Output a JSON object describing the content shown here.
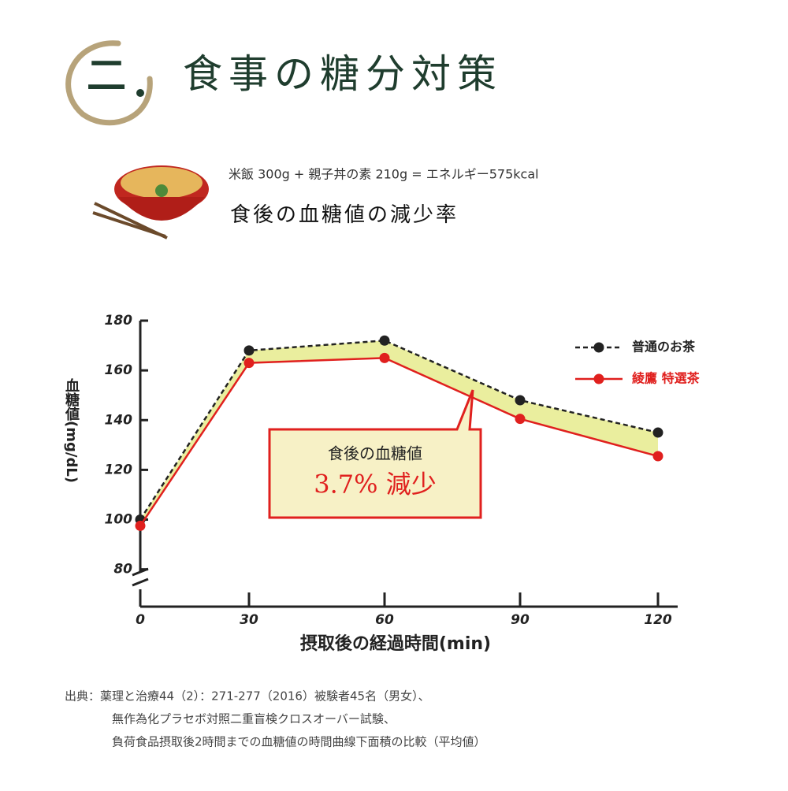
{
  "header": {
    "logo": "二",
    "title": "食事の糖分対策"
  },
  "meal": {
    "note": "米飯 300g + 親子丼の素 210g = エネルギー575kcal",
    "heading": "食後の血糖値の減少率"
  },
  "chart_data": {
    "type": "line",
    "y_label": "血糖値(mg/dL)",
    "x_label": "摂取後の経過時間(min)",
    "categories": [
      "0",
      "30",
      "60",
      "90",
      "120"
    ],
    "series": [
      {
        "name": "普通のお茶",
        "color": "#222222",
        "values": [
          100,
          168,
          172,
          148,
          135
        ]
      },
      {
        "name": "綾鷹 特選茶",
        "color": "#e0201e",
        "values": [
          97.5,
          163,
          165,
          140.5,
          125.5
        ]
      }
    ],
    "ylim": [
      65,
      180
    ],
    "yticks": [
      80,
      100,
      120,
      140,
      160,
      180
    ],
    "fill_between_color": "#eaee9e",
    "annotation": {
      "line1": "食後の血糖値",
      "line2": "3.7% 減少"
    }
  },
  "source": [
    "出典：薬理と治療44（2）：271-277（2016）被験者45名（男女）、",
    "無作為化プラセボ対照二重盲検クロスオーバー試験、",
    "負荷食品摂取後2時間までの血糖値の時間曲線下面積の比較（平均値）"
  ]
}
